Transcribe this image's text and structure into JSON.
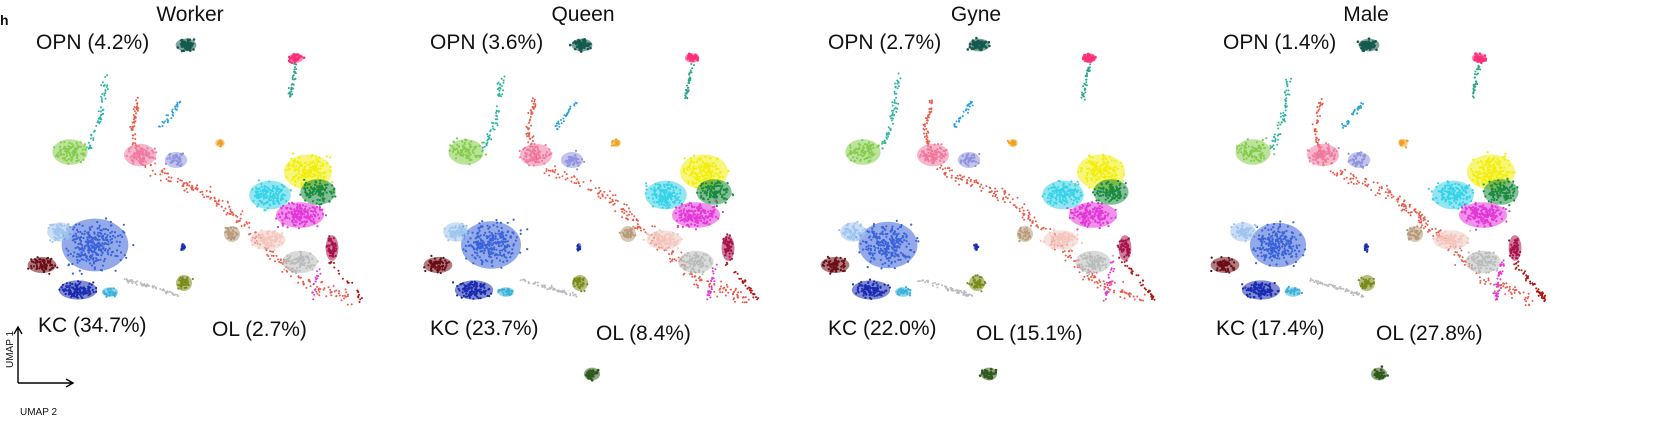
{
  "figure": {
    "panel_letter": "h",
    "axis_x_label": "UMAP 2",
    "axis_y_label": "UMAP 1"
  },
  "panels": [
    {
      "title": "Worker",
      "opn": "OPN (4.2%)",
      "kc": "KC (34.7%)",
      "ol": "OL (2.7%)",
      "ol_fraction": 0.027,
      "kc_fraction": 0.347,
      "opn_fraction": 0.042
    },
    {
      "title": "Queen",
      "opn": "OPN (3.6%)",
      "kc": "KC (23.7%)",
      "ol": "OL (8.4%)",
      "ol_fraction": 0.084,
      "kc_fraction": 0.237,
      "opn_fraction": 0.036
    },
    {
      "title": "Gyne",
      "opn": "OPN (2.7%)",
      "kc": "KC (22.0%)",
      "ol": "OL (15.1%)",
      "ol_fraction": 0.151,
      "kc_fraction": 0.22,
      "opn_fraction": 0.027
    },
    {
      "title": "Male",
      "opn": "OPN (1.4%)",
      "kc": "KC (17.4%)",
      "ol": "OL (27.8%)",
      "ol_fraction": 0.278,
      "kc_fraction": 0.174,
      "opn_fraction": 0.014
    }
  ],
  "colors": {
    "opn": "#155a4e",
    "kc_dark": "#1a2bb0",
    "kc_mid": "#3a63d8",
    "kc_light": "#9fc4ee",
    "kc_maroon": "#6b0e16",
    "yellow": "#f2ee0c",
    "green": "#1a8a3e",
    "cyan": "#36d2e8",
    "magenta": "#e437d9",
    "salmon": "#ec5a4a",
    "pink": "#f07aa0",
    "hotpink": "#ff2f7a",
    "teal": "#2aa58d",
    "olive": "#7a8a18",
    "crimson": "#a8124a",
    "darkred": "#b0120e",
    "tan": "#b79a7a",
    "lightgreen": "#84cc4a",
    "lightpink": "#f3c6bd",
    "lavender": "#8f93dd",
    "gray": "#b9bcbc",
    "orange": "#f0a020"
  }
}
